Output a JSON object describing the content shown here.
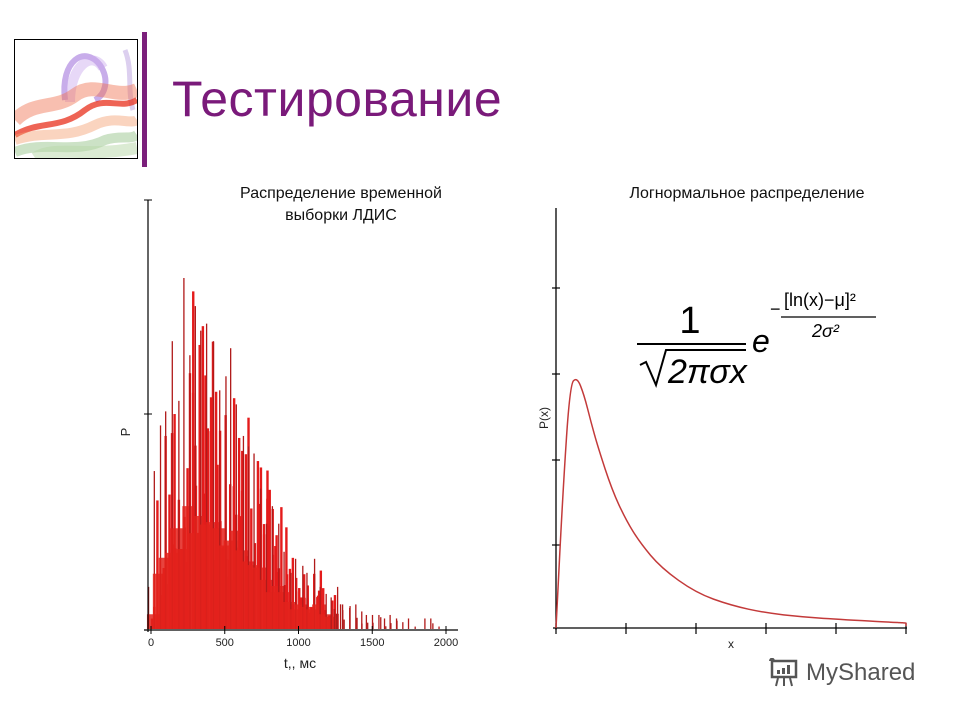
{
  "slide": {
    "title": "Тестирование",
    "accent_color": "#7a1a7a",
    "logo_icon": "abstract-smoke-image"
  },
  "left_chart": {
    "title_line1": "Распределение временной",
    "title_line2": "выборки ЛДИС",
    "ylabel": "P",
    "xlabel": "t,, мс",
    "xticks": [
      "0",
      "500",
      "1000",
      "1500",
      "2000"
    ]
  },
  "right_chart": {
    "title": "Логнормальное распределение",
    "ylabel": "P(x)",
    "xlabel": "x",
    "formula": {
      "numerator": "1",
      "denominator": "√2πσx",
      "base": "e",
      "exponent_numerator": "[ln(x)−μ]²",
      "exponent_denominator": "2σ²",
      "sign": "−"
    }
  },
  "watermark": {
    "text": "MyShared",
    "icon": "presentation-board-icon"
  },
  "chart_data": [
    {
      "type": "bar",
      "title": "Распределение временной выборки ЛДИС",
      "xlabel": "t,, мс",
      "ylabel": "P",
      "xlim": [
        0,
        2000
      ],
      "xticks": [
        0,
        500,
        1000,
        1500,
        2000
      ],
      "grid": false,
      "description": "Dense histogram of red vertical bars; rises from ~0, peaks around 100–500 ms, long tail to ~1950 ms",
      "x": [
        20,
        60,
        100,
        140,
        180,
        220,
        260,
        300,
        340,
        380,
        420,
        460,
        500,
        540,
        580,
        620,
        660,
        700,
        740,
        780,
        820,
        860,
        900,
        940,
        980,
        1020,
        1060,
        1100,
        1140,
        1180,
        1220,
        1260,
        1300,
        1340,
        1380,
        1420,
        1460,
        1500,
        1540,
        1580,
        1620,
        1660,
        1700,
        1740,
        1780,
        1820,
        1860,
        1900,
        1940
      ],
      "values": [
        0.12,
        0.45,
        0.58,
        0.62,
        0.82,
        0.65,
        1.0,
        0.78,
        0.92,
        0.85,
        0.87,
        0.82,
        0.68,
        0.72,
        0.8,
        0.64,
        0.55,
        0.52,
        0.5,
        0.4,
        0.3,
        0.35,
        0.3,
        0.22,
        0.16,
        0.2,
        0.18,
        0.16,
        0.2,
        0.12,
        0.1,
        0.09,
        0.12,
        0.07,
        0.06,
        0.07,
        0.05,
        0.04,
        0.04,
        0.04,
        0.03,
        0.04,
        0.03,
        0.0,
        0.03,
        0.0,
        0.0,
        0.03,
        0.03
      ]
    },
    {
      "type": "line",
      "title": "Логнормальное распределение",
      "xlabel": "x",
      "ylabel": "P(x)",
      "grid": false,
      "x_ticks_count": 6,
      "y_ticks_count": 5,
      "x": [
        0,
        0.1,
        0.2,
        0.3,
        0.4,
        0.5,
        0.6,
        0.8,
        1.0,
        1.2,
        1.5,
        2.0,
        2.5,
        3.0,
        3.5,
        4.0,
        5.0
      ],
      "values": [
        0,
        0.55,
        0.97,
        1.0,
        0.93,
        0.82,
        0.72,
        0.55,
        0.43,
        0.34,
        0.24,
        0.14,
        0.09,
        0.06,
        0.045,
        0.035,
        0.02
      ]
    }
  ]
}
